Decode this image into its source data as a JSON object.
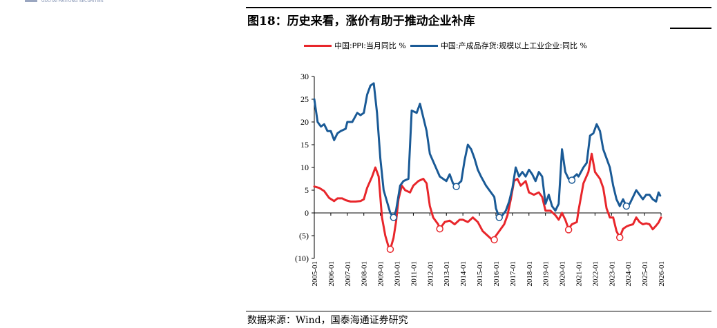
{
  "header": {
    "logo_text": "GUOTAI HAITONG SECURITIES",
    "title": "图18：历史来看，涨价有助于推动企业补库"
  },
  "source": "数据来源：Wind，国泰海通证券研究",
  "colors": {
    "ppi": "#e8262b",
    "inventory": "#1a5a96"
  },
  "chart_data": {
    "type": "line",
    "title": "图18：历史来看，涨价有助于推动企业补库",
    "xlabel": "",
    "ylabel": "",
    "ylim": [
      -10,
      30
    ],
    "yticks": [
      30,
      25,
      20,
      15,
      10,
      5,
      0,
      -5,
      -10
    ],
    "ytick_labels": [
      "30",
      "25",
      "20",
      "15",
      "10",
      "5",
      "0",
      "(5)",
      "(10)"
    ],
    "xticks": [
      "2005-01",
      "2006-01",
      "2007-01",
      "2008-01",
      "2009-01",
      "2010-01",
      "2011-01",
      "2012-01",
      "2013-01",
      "2014-01",
      "2015-01",
      "2016-01",
      "2017-01",
      "2018-01",
      "2019-01",
      "2020-01",
      "2021-01",
      "2022-01",
      "2023-01",
      "2024-01",
      "2025-01",
      "2026-01"
    ],
    "legend_position": "top",
    "grid": false,
    "series": [
      {
        "name": "中国:PPI:当月同比 %",
        "color": "#e8262b",
        "points": [
          [
            2005.0,
            5.8
          ],
          [
            2005.3,
            5.5
          ],
          [
            2005.6,
            4.8
          ],
          [
            2005.9,
            3.3
          ],
          [
            2006.2,
            2.6
          ],
          [
            2006.4,
            3.2
          ],
          [
            2006.7,
            3.2
          ],
          [
            2006.9,
            2.8
          ],
          [
            2007.2,
            2.5
          ],
          [
            2007.5,
            2.5
          ],
          [
            2007.8,
            2.6
          ],
          [
            2008.0,
            3.0
          ],
          [
            2008.2,
            5.5
          ],
          [
            2008.5,
            8.0
          ],
          [
            2008.7,
            10.0
          ],
          [
            2008.9,
            8.0
          ],
          [
            2009.1,
            -1.0
          ],
          [
            2009.3,
            -5.0
          ],
          [
            2009.5,
            -7.5
          ],
          [
            2009.6,
            -8.0
          ],
          [
            2009.8,
            -5.5
          ],
          [
            2009.95,
            -2.0
          ],
          [
            2010.1,
            3.0
          ],
          [
            2010.3,
            6.0
          ],
          [
            2010.5,
            5.0
          ],
          [
            2010.8,
            4.5
          ],
          [
            2011.0,
            6.0
          ],
          [
            2011.3,
            7.0
          ],
          [
            2011.6,
            7.5
          ],
          [
            2011.8,
            6.5
          ],
          [
            2012.0,
            1.5
          ],
          [
            2012.2,
            -1.0
          ],
          [
            2012.5,
            -2.5
          ],
          [
            2012.6,
            -3.5
          ],
          [
            2012.9,
            -2.0
          ],
          [
            2013.2,
            -1.7
          ],
          [
            2013.5,
            -2.5
          ],
          [
            2013.8,
            -1.5
          ],
          [
            2014.0,
            -1.5
          ],
          [
            2014.3,
            -2.0
          ],
          [
            2014.6,
            -1.0
          ],
          [
            2014.9,
            -2.0
          ],
          [
            2015.2,
            -4.0
          ],
          [
            2015.5,
            -5.0
          ],
          [
            2015.8,
            -6.0
          ],
          [
            2016.0,
            -5.0
          ],
          [
            2016.3,
            -3.5
          ],
          [
            2016.5,
            -2.5
          ],
          [
            2016.7,
            -0.5
          ],
          [
            2016.9,
            3.0
          ],
          [
            2017.1,
            7.0
          ],
          [
            2017.3,
            7.5
          ],
          [
            2017.5,
            6.0
          ],
          [
            2017.8,
            7.0
          ],
          [
            2018.0,
            4.5
          ],
          [
            2018.3,
            4.0
          ],
          [
            2018.6,
            4.5
          ],
          [
            2018.8,
            3.5
          ],
          [
            2019.0,
            0.5
          ],
          [
            2019.3,
            0.5
          ],
          [
            2019.6,
            -0.5
          ],
          [
            2019.8,
            -1.5
          ],
          [
            2020.0,
            0.0
          ],
          [
            2020.2,
            -1.5
          ],
          [
            2020.4,
            -3.5
          ],
          [
            2020.6,
            -2.5
          ],
          [
            2020.9,
            -2.0
          ],
          [
            2021.0,
            0.5
          ],
          [
            2021.3,
            6.5
          ],
          [
            2021.6,
            9.0
          ],
          [
            2021.8,
            13.0
          ],
          [
            2022.0,
            9.0
          ],
          [
            2022.3,
            7.5
          ],
          [
            2022.5,
            5.5
          ],
          [
            2022.7,
            1.0
          ],
          [
            2022.9,
            -1.0
          ],
          [
            2023.1,
            -1.0
          ],
          [
            2023.3,
            -4.0
          ],
          [
            2023.5,
            -5.4
          ],
          [
            2023.7,
            -3.5
          ],
          [
            2023.9,
            -3.0
          ],
          [
            2024.1,
            -2.7
          ],
          [
            2024.3,
            -2.5
          ],
          [
            2024.5,
            -1.0
          ],
          [
            2024.7,
            -2.0
          ],
          [
            2024.9,
            -2.5
          ],
          [
            2025.1,
            -2.3
          ],
          [
            2025.3,
            -2.5
          ],
          [
            2025.5,
            -3.6
          ],
          [
            2025.7,
            -2.8
          ],
          [
            2025.85,
            -2.1
          ],
          [
            2026.0,
            -1.0
          ]
        ],
        "markers": [
          [
            2009.6,
            -8.0
          ],
          [
            2012.6,
            -3.5
          ],
          [
            2015.9,
            -5.9
          ],
          [
            2020.4,
            -3.7
          ],
          [
            2023.5,
            -5.4
          ]
        ]
      },
      {
        "name": "中国:产成品存货:规模以上工业企业:同比 %",
        "color": "#1a5a96",
        "points": [
          [
            2005.0,
            25.0
          ],
          [
            2005.2,
            20.0
          ],
          [
            2005.4,
            19.0
          ],
          [
            2005.6,
            19.5
          ],
          [
            2005.8,
            18.0
          ],
          [
            2006.0,
            18.0
          ],
          [
            2006.2,
            16.0
          ],
          [
            2006.4,
            17.5
          ],
          [
            2006.6,
            18.0
          ],
          [
            2006.9,
            18.5
          ],
          [
            2007.0,
            20.0
          ],
          [
            2007.3,
            20.0
          ],
          [
            2007.6,
            22.0
          ],
          [
            2007.8,
            21.5
          ],
          [
            2008.0,
            22.0
          ],
          [
            2008.2,
            26.0
          ],
          [
            2008.4,
            28.0
          ],
          [
            2008.6,
            28.5
          ],
          [
            2008.8,
            22.0
          ],
          [
            2009.0,
            12.0
          ],
          [
            2009.2,
            5.0
          ],
          [
            2009.4,
            2.5
          ],
          [
            2009.6,
            0.0
          ],
          [
            2009.8,
            -1.0
          ],
          [
            2009.95,
            0.5
          ],
          [
            2010.2,
            6.0
          ],
          [
            2010.4,
            7.0
          ],
          [
            2010.7,
            7.5
          ],
          [
            2010.9,
            22.5
          ],
          [
            2011.2,
            22.0
          ],
          [
            2011.4,
            24.0
          ],
          [
            2011.6,
            21.0
          ],
          [
            2011.8,
            18.0
          ],
          [
            2012.0,
            13.0
          ],
          [
            2012.3,
            10.5
          ],
          [
            2012.6,
            8.0
          ],
          [
            2012.8,
            7.5
          ],
          [
            2013.0,
            7.0
          ],
          [
            2013.2,
            8.5
          ],
          [
            2013.4,
            6.5
          ],
          [
            2013.6,
            6.0
          ],
          [
            2013.9,
            7.0
          ],
          [
            2014.1,
            11.5
          ],
          [
            2014.3,
            15.0
          ],
          [
            2014.5,
            14.0
          ],
          [
            2014.7,
            12.0
          ],
          [
            2014.9,
            9.5
          ],
          [
            2015.1,
            8.0
          ],
          [
            2015.4,
            6.0
          ],
          [
            2015.6,
            5.0
          ],
          [
            2015.9,
            3.5
          ],
          [
            2016.0,
            1.0
          ],
          [
            2016.2,
            -1.0
          ],
          [
            2016.4,
            -0.5
          ],
          [
            2016.6,
            0.5
          ],
          [
            2016.8,
            2.5
          ],
          [
            2017.0,
            5.5
          ],
          [
            2017.2,
            10.0
          ],
          [
            2017.4,
            8.0
          ],
          [
            2017.6,
            9.0
          ],
          [
            2017.8,
            8.0
          ],
          [
            2018.0,
            9.5
          ],
          [
            2018.2,
            8.5
          ],
          [
            2018.4,
            7.0
          ],
          [
            2018.6,
            9.0
          ],
          [
            2018.8,
            8.0
          ],
          [
            2019.0,
            2.0
          ],
          [
            2019.2,
            4.0
          ],
          [
            2019.4,
            1.5
          ],
          [
            2019.6,
            0.5
          ],
          [
            2019.8,
            2.0
          ],
          [
            2020.0,
            14.0
          ],
          [
            2020.2,
            9.0
          ],
          [
            2020.4,
            7.5
          ],
          [
            2020.6,
            7.5
          ],
          [
            2020.9,
            8.5
          ],
          [
            2021.0,
            8.0
          ],
          [
            2021.3,
            10.0
          ],
          [
            2021.5,
            11.0
          ],
          [
            2021.7,
            17.0
          ],
          [
            2021.9,
            17.5
          ],
          [
            2022.1,
            19.5
          ],
          [
            2022.3,
            18.0
          ],
          [
            2022.5,
            14.0
          ],
          [
            2022.7,
            12.0
          ],
          [
            2022.9,
            10.0
          ],
          [
            2023.1,
            6.0
          ],
          [
            2023.3,
            3.0
          ],
          [
            2023.5,
            1.5
          ],
          [
            2023.7,
            3.0
          ],
          [
            2023.9,
            1.5
          ],
          [
            2024.1,
            2.0
          ],
          [
            2024.3,
            3.5
          ],
          [
            2024.5,
            5.0
          ],
          [
            2024.7,
            4.0
          ],
          [
            2024.9,
            3.0
          ],
          [
            2025.1,
            4.0
          ],
          [
            2025.3,
            4.0
          ],
          [
            2025.5,
            3.0
          ],
          [
            2025.7,
            2.5
          ],
          [
            2025.85,
            4.5
          ],
          [
            2025.95,
            3.8
          ]
        ],
        "markers": [
          [
            2009.8,
            -1.0
          ],
          [
            2013.6,
            5.8
          ],
          [
            2016.2,
            -1.0
          ],
          [
            2020.6,
            7.2
          ],
          [
            2023.9,
            1.5
          ]
        ]
      }
    ]
  }
}
